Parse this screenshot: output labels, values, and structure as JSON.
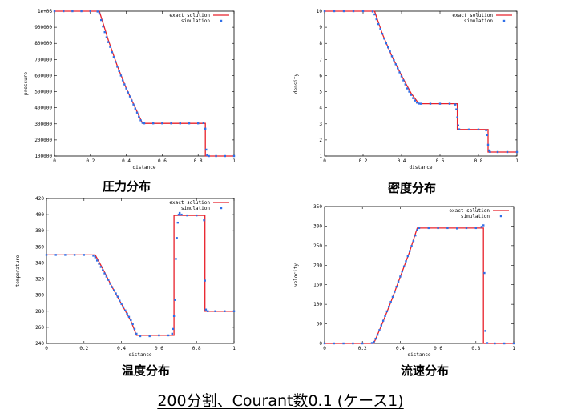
{
  "footer": {
    "text": "200分割、Courant数0.1 (ケース1)"
  },
  "chart_data": [
    {
      "type": "line",
      "caption": "圧力分布",
      "xlabel": "distance",
      "ylabel": "pressure",
      "xlim": [
        0,
        1
      ],
      "ylim": [
        100000,
        1000000
      ],
      "xticks": [
        0,
        0.2,
        0.4,
        0.6,
        0.8,
        1
      ],
      "xtick_labels": [
        "0",
        "0.2",
        "0.4",
        "0.6",
        "0.8",
        "1"
      ],
      "yticks": [
        100000,
        200000,
        300000,
        400000,
        500000,
        600000,
        700000,
        800000,
        900000,
        1000000
      ],
      "ytick_labels": [
        "100000",
        "200000",
        "300000",
        "400000",
        "500000",
        "600000",
        "700000",
        "800000",
        "900000",
        "1e+06"
      ],
      "legend": "top-right",
      "series": [
        {
          "name": "exact solution",
          "style": "line",
          "color": "#e8202a",
          "x": [
            0,
            0.25,
            0.3,
            0.35,
            0.4,
            0.45,
            0.49,
            0.6,
            0.84,
            0.84,
            1
          ],
          "y": [
            1000000,
            1000000,
            820000,
            660000,
            520000,
            400000,
            303000,
            303000,
            303000,
            100000,
            100000
          ]
        },
        {
          "name": "simulation",
          "style": "points",
          "color": "#2f6fe8",
          "x": [
            0,
            0.05,
            0.1,
            0.15,
            0.2,
            0.24,
            0.25,
            0.26,
            0.27,
            0.28,
            0.29,
            0.3,
            0.31,
            0.32,
            0.33,
            0.34,
            0.35,
            0.36,
            0.37,
            0.38,
            0.39,
            0.4,
            0.41,
            0.42,
            0.43,
            0.44,
            0.45,
            0.46,
            0.47,
            0.48,
            0.49,
            0.5,
            0.55,
            0.6,
            0.65,
            0.7,
            0.75,
            0.8,
            0.83,
            0.84,
            0.845,
            0.85,
            0.86,
            0.9,
            0.95,
            1
          ],
          "y": [
            1000000,
            1000000,
            1000000,
            1000000,
            1000000,
            998000,
            985000,
            945000,
            905000,
            870000,
            838000,
            808000,
            778000,
            745000,
            715000,
            685000,
            655000,
            628000,
            600000,
            570000,
            545000,
            520000,
            495000,
            470000,
            445000,
            420000,
            395000,
            370000,
            345000,
            322000,
            307000,
            303000,
            303000,
            303000,
            303000,
            303000,
            303000,
            303000,
            305000,
            270000,
            140000,
            105000,
            100000,
            100000,
            100000,
            100000
          ]
        }
      ]
    },
    {
      "type": "line",
      "caption": "密度分布",
      "xlabel": "distance",
      "ylabel": "density",
      "xlim": [
        0,
        1
      ],
      "ylim": [
        1,
        10
      ],
      "xticks": [
        0,
        0.2,
        0.4,
        0.6,
        0.8,
        1
      ],
      "xtick_labels": [
        "0",
        "0.2",
        "0.4",
        "0.6",
        "0.8",
        "1"
      ],
      "yticks": [
        1,
        2,
        3,
        4,
        5,
        6,
        7,
        8,
        9,
        10
      ],
      "ytick_labels": [
        "1",
        "2",
        "3",
        "4",
        "5",
        "6",
        "7",
        "8",
        "9",
        "10"
      ],
      "legend": "top-right",
      "series": [
        {
          "name": "exact solution",
          "style": "line",
          "color": "#e8202a",
          "x": [
            0,
            0.26,
            0.3,
            0.35,
            0.4,
            0.45,
            0.49,
            0.69,
            0.69,
            0.85,
            0.85,
            1
          ],
          "y": [
            10,
            10,
            8.6,
            7.2,
            6.0,
            4.9,
            4.25,
            4.25,
            2.65,
            2.65,
            1.25,
            1.25
          ]
        },
        {
          "name": "simulation",
          "style": "points",
          "color": "#2f6fe8",
          "x": [
            0,
            0.05,
            0.1,
            0.15,
            0.2,
            0.25,
            0.26,
            0.27,
            0.28,
            0.29,
            0.3,
            0.31,
            0.32,
            0.33,
            0.34,
            0.35,
            0.36,
            0.37,
            0.38,
            0.39,
            0.4,
            0.41,
            0.42,
            0.43,
            0.44,
            0.45,
            0.46,
            0.47,
            0.48,
            0.49,
            0.5,
            0.55,
            0.6,
            0.65,
            0.68,
            0.685,
            0.69,
            0.695,
            0.7,
            0.75,
            0.8,
            0.84,
            0.845,
            0.85,
            0.855,
            0.86,
            0.9,
            0.95,
            1
          ],
          "y": [
            10,
            10,
            10,
            10,
            10,
            9.98,
            9.8,
            9.5,
            9.2,
            8.9,
            8.6,
            8.3,
            8.0,
            7.75,
            7.5,
            7.2,
            6.95,
            6.7,
            6.45,
            6.2,
            5.95,
            5.7,
            5.45,
            5.2,
            5.0,
            4.8,
            4.6,
            4.45,
            4.32,
            4.26,
            4.25,
            4.25,
            4.25,
            4.25,
            4.2,
            3.9,
            3.4,
            2.9,
            2.66,
            2.65,
            2.65,
            2.6,
            2.3,
            1.7,
            1.35,
            1.26,
            1.25,
            1.25,
            1.25
          ]
        }
      ]
    },
    {
      "type": "line",
      "caption": "温度分布",
      "xlabel": "distance",
      "ylabel": "temperature",
      "xlim": [
        0,
        1
      ],
      "ylim": [
        240,
        420
      ],
      "xticks": [
        0,
        0.2,
        0.4,
        0.6,
        0.8,
        1
      ],
      "xtick_labels": [
        "0",
        "0.2",
        "0.4",
        "0.6",
        "0.8",
        "1"
      ],
      "yticks": [
        240,
        260,
        280,
        300,
        320,
        340,
        360,
        380,
        400,
        420
      ],
      "ytick_labels": [
        "240",
        "260",
        "280",
        "300",
        "320",
        "340",
        "360",
        "380",
        "400",
        "420"
      ],
      "legend": "top-right",
      "series": [
        {
          "name": "exact solution",
          "style": "line",
          "color": "#e8202a",
          "x": [
            0,
            0.26,
            0.3,
            0.35,
            0.4,
            0.45,
            0.48,
            0.68,
            0.68,
            0.845,
            0.845,
            1
          ],
          "y": [
            350,
            350,
            333,
            310,
            289,
            268,
            250,
            250,
            399,
            399,
            280,
            280
          ]
        },
        {
          "name": "simulation",
          "style": "points",
          "color": "#2f6fe8",
          "x": [
            0,
            0.05,
            0.1,
            0.15,
            0.2,
            0.25,
            0.26,
            0.27,
            0.28,
            0.29,
            0.3,
            0.31,
            0.32,
            0.33,
            0.34,
            0.35,
            0.36,
            0.37,
            0.38,
            0.39,
            0.4,
            0.41,
            0.42,
            0.43,
            0.44,
            0.45,
            0.46,
            0.47,
            0.48,
            0.5,
            0.55,
            0.6,
            0.65,
            0.67,
            0.675,
            0.68,
            0.685,
            0.69,
            0.695,
            0.7,
            0.705,
            0.71,
            0.72,
            0.75,
            0.8,
            0.84,
            0.845,
            0.85,
            0.86,
            0.9,
            0.95,
            1
          ],
          "y": [
            350,
            350,
            350,
            350,
            350,
            349,
            347,
            343,
            339,
            335,
            331,
            327,
            323,
            319,
            314,
            310,
            306,
            302,
            298,
            293,
            289,
            285,
            281,
            277,
            273,
            269,
            264,
            258,
            252,
            249,
            249,
            250,
            250,
            252,
            258,
            274,
            294,
            345,
            371,
            390,
            400,
            402,
            400,
            399,
            399,
            393,
            318,
            282,
            280,
            280,
            280,
            280
          ]
        }
      ]
    },
    {
      "type": "line",
      "caption": "流速分布",
      "xlabel": "distance",
      "ylabel": "velocity",
      "xlim": [
        0,
        1
      ],
      "ylim": [
        0,
        350
      ],
      "xticks": [
        0,
        0.2,
        0.4,
        0.6,
        0.8,
        1
      ],
      "xtick_labels": [
        "0",
        "0.2",
        "0.4",
        "0.6",
        "0.8",
        "1"
      ],
      "yticks": [
        0,
        50,
        100,
        150,
        200,
        250,
        300,
        350
      ],
      "ytick_labels": [
        "0",
        "50",
        "100",
        "150",
        "200",
        "250",
        "300",
        "350"
      ],
      "legend": "top-right",
      "series": [
        {
          "name": "exact solution",
          "style": "line",
          "color": "#e8202a",
          "x": [
            0,
            0.26,
            0.3,
            0.35,
            0.4,
            0.45,
            0.49,
            0.84,
            0.84,
            1
          ],
          "y": [
            0,
            0,
            45,
            105,
            170,
            235,
            295,
            295,
            0,
            0
          ]
        },
        {
          "name": "simulation",
          "style": "points",
          "color": "#2f6fe8",
          "x": [
            0,
            0.05,
            0.1,
            0.15,
            0.2,
            0.25,
            0.26,
            0.27,
            0.28,
            0.29,
            0.3,
            0.31,
            0.32,
            0.33,
            0.34,
            0.35,
            0.36,
            0.37,
            0.38,
            0.39,
            0.4,
            0.41,
            0.42,
            0.43,
            0.44,
            0.45,
            0.46,
            0.47,
            0.48,
            0.49,
            0.5,
            0.55,
            0.6,
            0.65,
            0.7,
            0.75,
            0.8,
            0.83,
            0.84,
            0.845,
            0.85,
            0.86,
            0.9,
            0.95,
            1
          ],
          "y": [
            0,
            0,
            0,
            0,
            0,
            1,
            4,
            12,
            22,
            34,
            46,
            58,
            70,
            82,
            94,
            106,
            119,
            132,
            145,
            158,
            171,
            184,
            197,
            210,
            223,
            236,
            249,
            262,
            276,
            290,
            295,
            295,
            295,
            295,
            294,
            295,
            295,
            298,
            302,
            180,
            32,
            1,
            0,
            0,
            0
          ]
        }
      ]
    }
  ]
}
